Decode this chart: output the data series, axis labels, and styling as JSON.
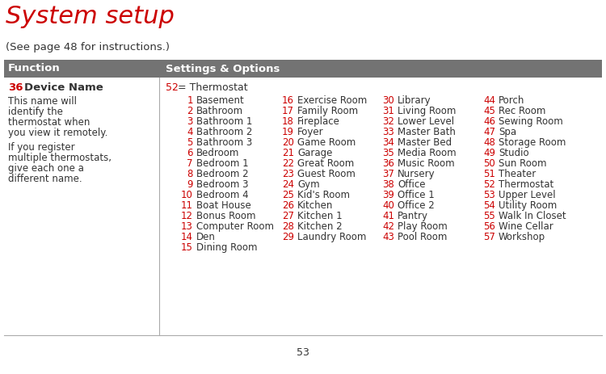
{
  "title": "System setup",
  "subtitle": "(See page 48 for instructions.)",
  "header_col1": "Function",
  "header_col2": "Settings & Options",
  "header_bg": "#737373",
  "header_fg": "#ffffff",
  "func_number": "36",
  "func_name": "Device Name",
  "func_desc1": "This name will\nidentify the\nthermostat when\nyou view it remotely.",
  "func_desc2": "If you register\nmultiple thermostats,\ngive each one a\ndifferent name.",
  "default_label_num": "52",
  "default_label_text": " = Thermostat",
  "footer_page": "53",
  "red": "#cc0000",
  "black": "#333333",
  "bg": "#ffffff",
  "col1_items": [
    [
      "1",
      "Basement"
    ],
    [
      "2",
      "Bathroom"
    ],
    [
      "3",
      "Bathroom 1"
    ],
    [
      "4",
      "Bathroom 2"
    ],
    [
      "5",
      "Bathroom 3"
    ],
    [
      "6",
      "Bedroom"
    ],
    [
      "7",
      "Bedroom 1"
    ],
    [
      "8",
      "Bedroom 2"
    ],
    [
      "9",
      "Bedroom 3"
    ],
    [
      "10",
      "Bedroom 4"
    ],
    [
      "11",
      "Boat House"
    ],
    [
      "12",
      "Bonus Room"
    ],
    [
      "13",
      "Computer Room"
    ],
    [
      "14",
      "Den"
    ],
    [
      "15",
      "Dining Room"
    ]
  ],
  "col2_items": [
    [
      "16",
      "Exercise Room"
    ],
    [
      "17",
      "Family Room"
    ],
    [
      "18",
      "Fireplace"
    ],
    [
      "19",
      "Foyer"
    ],
    [
      "20",
      "Game Room"
    ],
    [
      "21",
      "Garage"
    ],
    [
      "22",
      "Great Room"
    ],
    [
      "23",
      "Guest Room"
    ],
    [
      "24",
      "Gym"
    ],
    [
      "25",
      "Kid's Room"
    ],
    [
      "26",
      "Kitchen"
    ],
    [
      "27",
      "Kitchen 1"
    ],
    [
      "28",
      "Kitchen 2"
    ],
    [
      "29",
      "Laundry Room"
    ],
    [
      "",
      ""
    ]
  ],
  "col3_items": [
    [
      "30",
      "Library"
    ],
    [
      "31",
      "Living Room"
    ],
    [
      "32",
      "Lower Level"
    ],
    [
      "33",
      "Master Bath"
    ],
    [
      "34",
      "Master Bed"
    ],
    [
      "35",
      "Media Room"
    ],
    [
      "36",
      "Music Room"
    ],
    [
      "37",
      "Nursery"
    ],
    [
      "38",
      "Office"
    ],
    [
      "39",
      "Office 1"
    ],
    [
      "40",
      "Office 2"
    ],
    [
      "41",
      "Pantry"
    ],
    [
      "42",
      "Play Room"
    ],
    [
      "43",
      "Pool Room"
    ],
    [
      "",
      ""
    ]
  ],
  "col4_items": [
    [
      "44",
      "Porch"
    ],
    [
      "45",
      "Rec Room"
    ],
    [
      "46",
      "Sewing Room"
    ],
    [
      "47",
      "Spa"
    ],
    [
      "48",
      "Storage Room"
    ],
    [
      "49",
      "Studio"
    ],
    [
      "50",
      "Sun Room"
    ],
    [
      "51",
      "Theater"
    ],
    [
      "52",
      "Thermostat"
    ],
    [
      "53",
      "Upper Level"
    ],
    [
      "54",
      "Utility Room"
    ],
    [
      "55",
      "Walk In Closet"
    ],
    [
      "56",
      "Wine Cellar"
    ],
    [
      "57",
      "Workshop"
    ],
    [
      "",
      ""
    ]
  ]
}
